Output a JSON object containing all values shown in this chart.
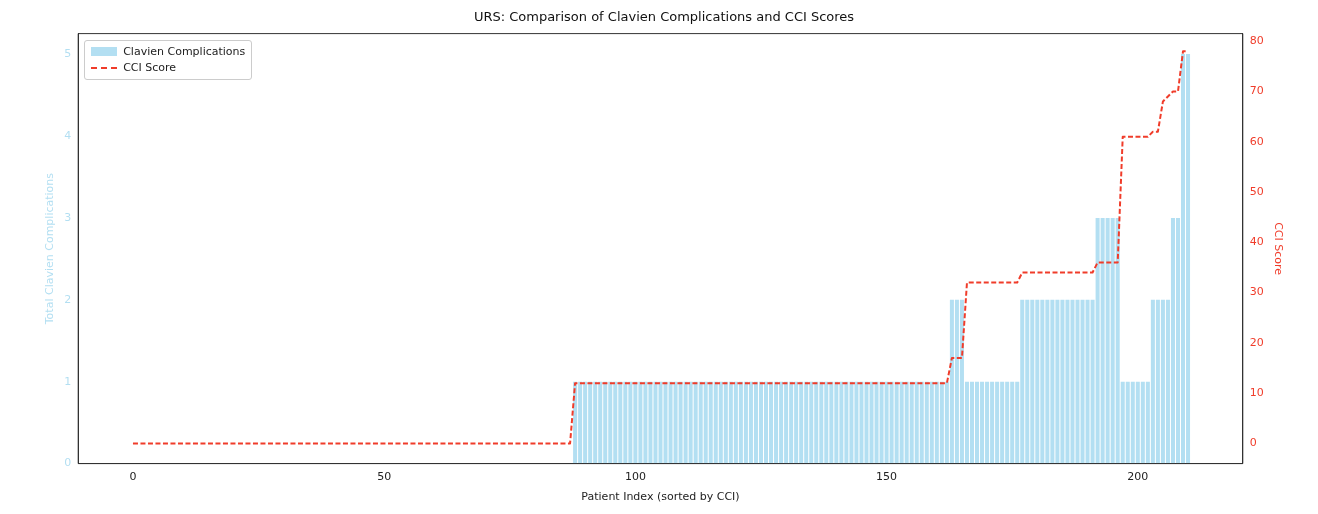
{
  "chart_data": {
    "type": "bar",
    "title": "URS: Comparison of Clavien Complications and CCI Scores",
    "xlabel": "Patient Index (sorted by CCI)",
    "ylabel": "Total Clavien Complications",
    "y2label": "CCI Score",
    "x": [
      0,
      1,
      2,
      3,
      4,
      5,
      6,
      7,
      8,
      9,
      10,
      11,
      12,
      13,
      14,
      15,
      16,
      17,
      18,
      19,
      20,
      21,
      22,
      23,
      24,
      25,
      26,
      27,
      28,
      29,
      30,
      31,
      32,
      33,
      34,
      35,
      36,
      37,
      38,
      39,
      40,
      41,
      42,
      43,
      44,
      45,
      46,
      47,
      48,
      49,
      50,
      51,
      52,
      53,
      54,
      55,
      56,
      57,
      58,
      59,
      60,
      61,
      62,
      63,
      64,
      65,
      66,
      67,
      68,
      69,
      70,
      71,
      72,
      73,
      74,
      75,
      76,
      77,
      78,
      79,
      80,
      81,
      82,
      83,
      84,
      85,
      86,
      87,
      88,
      89,
      90,
      91,
      92,
      93,
      94,
      95,
      96,
      97,
      98,
      99,
      100,
      101,
      102,
      103,
      104,
      105,
      106,
      107,
      108,
      109,
      110,
      111,
      112,
      113,
      114,
      115,
      116,
      117,
      118,
      119,
      120,
      121,
      122,
      123,
      124,
      125,
      126,
      127,
      128,
      129,
      130,
      131,
      132,
      133,
      134,
      135,
      136,
      137,
      138,
      139,
      140,
      141,
      142,
      143,
      144,
      145,
      146,
      147,
      148,
      149,
      150,
      151,
      152,
      153,
      154,
      155,
      156,
      157,
      158,
      159,
      160,
      161,
      162,
      163,
      164,
      165,
      166,
      167,
      168,
      169,
      170,
      171,
      172,
      173,
      174,
      175,
      176,
      177,
      178,
      179,
      180,
      181,
      182,
      183,
      184,
      185,
      186,
      187,
      188,
      189,
      190,
      191,
      192,
      193,
      194,
      195,
      196,
      197,
      198,
      199,
      200,
      201,
      202,
      203,
      204,
      205,
      206,
      207,
      208,
      209,
      210
    ],
    "series": [
      {
        "name": "Clavien Complications",
        "color": "#b3dff2",
        "values": [
          0,
          0,
          0,
          0,
          0,
          0,
          0,
          0,
          0,
          0,
          0,
          0,
          0,
          0,
          0,
          0,
          0,
          0,
          0,
          0,
          0,
          0,
          0,
          0,
          0,
          0,
          0,
          0,
          0,
          0,
          0,
          0,
          0,
          0,
          0,
          0,
          0,
          0,
          0,
          0,
          0,
          0,
          0,
          0,
          0,
          0,
          0,
          0,
          0,
          0,
          0,
          0,
          0,
          0,
          0,
          0,
          0,
          0,
          0,
          0,
          0,
          0,
          0,
          0,
          0,
          0,
          0,
          0,
          0,
          0,
          0,
          0,
          0,
          0,
          0,
          0,
          0,
          0,
          0,
          0,
          0,
          0,
          0,
          0,
          0,
          0,
          0,
          0,
          1,
          1,
          1,
          1,
          1,
          1,
          1,
          1,
          1,
          1,
          1,
          1,
          1,
          1,
          1,
          1,
          1,
          1,
          1,
          1,
          1,
          1,
          1,
          1,
          1,
          1,
          1,
          1,
          1,
          1,
          1,
          1,
          1,
          1,
          1,
          1,
          1,
          1,
          1,
          1,
          1,
          1,
          1,
          1,
          1,
          1,
          1,
          1,
          1,
          1,
          1,
          1,
          1,
          1,
          1,
          1,
          1,
          1,
          1,
          1,
          1,
          1,
          1,
          1,
          1,
          1,
          1,
          1,
          1,
          1,
          1,
          1,
          1,
          1,
          1,
          2,
          2,
          2,
          1,
          1,
          1,
          1,
          1,
          1,
          1,
          1,
          1,
          1,
          1,
          2,
          2,
          2,
          2,
          2,
          2,
          2,
          2,
          2,
          2,
          2,
          2,
          2,
          2,
          2,
          3,
          3,
          3,
          3,
          3,
          1,
          1,
          1,
          1,
          1,
          1,
          2,
          2,
          2,
          2,
          3,
          3,
          5,
          5
        ]
      },
      {
        "name": "CCI Score",
        "type": "line",
        "axis": "y2",
        "color": "#f03c2a",
        "line_style": "dashed",
        "values": [
          0,
          0,
          0,
          0,
          0,
          0,
          0,
          0,
          0,
          0,
          0,
          0,
          0,
          0,
          0,
          0,
          0,
          0,
          0,
          0,
          0,
          0,
          0,
          0,
          0,
          0,
          0,
          0,
          0,
          0,
          0,
          0,
          0,
          0,
          0,
          0,
          0,
          0,
          0,
          0,
          0,
          0,
          0,
          0,
          0,
          0,
          0,
          0,
          0,
          0,
          0,
          0,
          0,
          0,
          0,
          0,
          0,
          0,
          0,
          0,
          0,
          0,
          0,
          0,
          0,
          0,
          0,
          0,
          0,
          0,
          0,
          0,
          0,
          0,
          0,
          0,
          0,
          0,
          0,
          0,
          0,
          0,
          0,
          0,
          0,
          0,
          0,
          0,
          12,
          12,
          12,
          12,
          12,
          12,
          12,
          12,
          12,
          12,
          12,
          12,
          12,
          12,
          12,
          12,
          12,
          12,
          12,
          12,
          12,
          12,
          12,
          12,
          12,
          12,
          12,
          12,
          12,
          12,
          12,
          12,
          12,
          12,
          12,
          12,
          12,
          12,
          12,
          12,
          12,
          12,
          12,
          12,
          12,
          12,
          12,
          12,
          12,
          12,
          12,
          12,
          12,
          12,
          12,
          12,
          12,
          12,
          12,
          12,
          12,
          12,
          12,
          12,
          12,
          12,
          12,
          12,
          12,
          12,
          12,
          12,
          12,
          12,
          12,
          17,
          17,
          17,
          32,
          32,
          32,
          32,
          32,
          32,
          32,
          32,
          32,
          32,
          32,
          34,
          34,
          34,
          34,
          34,
          34,
          34,
          34,
          34,
          34,
          34,
          34,
          34,
          34,
          34,
          36,
          36,
          36,
          36,
          36,
          61,
          61,
          61,
          61,
          61,
          61,
          62,
          62,
          68,
          69,
          70,
          70,
          78,
          78
        ]
      }
    ],
    "xlim": [
      -10.9,
      220.9
    ],
    "xticks": [
      0,
      50,
      100,
      150,
      200
    ],
    "ylim": [
      0,
      5.25
    ],
    "yticks": [
      0,
      1,
      2,
      3,
      4,
      5
    ],
    "y2lim": [
      -4,
      81.5
    ],
    "y2ticks": [
      0,
      10,
      20,
      30,
      40,
      50,
      60,
      70,
      80
    ],
    "legend": "top left",
    "marker": "none"
  }
}
